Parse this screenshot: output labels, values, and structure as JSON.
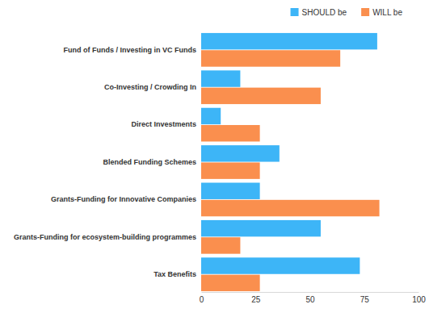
{
  "chart_data": {
    "type": "bar",
    "orientation": "horizontal",
    "categories": [
      "Fund of Funds / Investing in VC Funds",
      "Co-Investing / Crowding In",
      "Direct Investments",
      "Blended Funding Schemes",
      "Grants-Funding for Innovative Companies",
      "Grants-Funding for ecosystem-building programmes",
      "Tax Benefits"
    ],
    "series": [
      {
        "name": "SHOULD be",
        "color": "#3db5f7",
        "values": [
          81,
          18,
          9,
          36,
          27,
          55,
          73
        ]
      },
      {
        "name": "WILL be",
        "color": "#fa8f4e",
        "values": [
          64,
          55,
          27,
          27,
          82,
          18,
          27
        ]
      }
    ],
    "xlim": [
      0,
      100
    ],
    "xticks": [
      0,
      25,
      50,
      75,
      100
    ],
    "grid": false,
    "legend": "top-right"
  }
}
